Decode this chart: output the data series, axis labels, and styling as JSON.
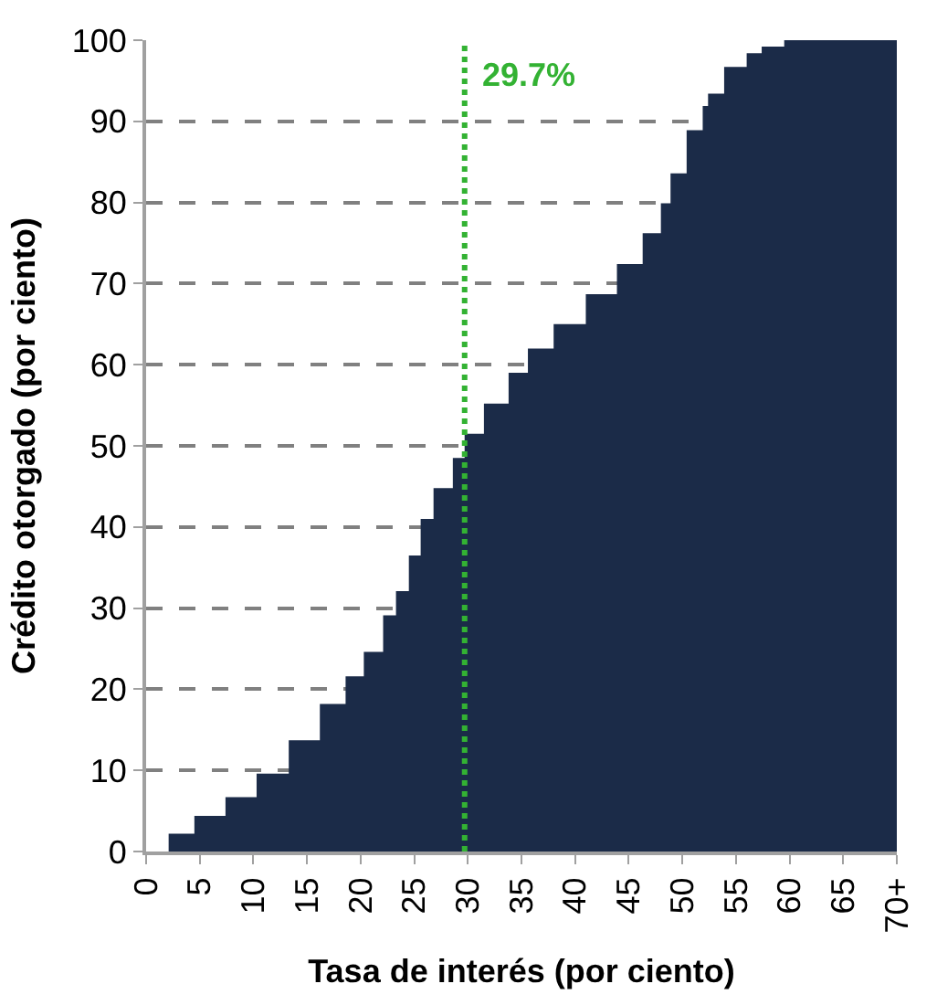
{
  "chart_data": {
    "type": "area",
    "xlabel": "Tasa de interés (por ciento)",
    "ylabel": "Crédito otorgado (por ciento)",
    "x": [
      0,
      2.1,
      4.5,
      7.4,
      10.3,
      13.3,
      16.2,
      18.6,
      20.3,
      22.1,
      23.3,
      24.5,
      25.6,
      26.8,
      28.6,
      29.7,
      31.5,
      33.8,
      35.6,
      38.0,
      41.0,
      43.9,
      46.3,
      48.0,
      48.9,
      50.4,
      51.9,
      52.4,
      53.9,
      56.0,
      57.4,
      59.5,
      70
    ],
    "series": [
      {
        "color": "#1b2b48",
        "values": [
          0,
          2.2,
          4.4,
          6.7,
          9.6,
          13.7,
          18.2,
          21.6,
          24.6,
          29.1,
          32.1,
          36.5,
          41.0,
          44.8,
          48.5,
          51.5,
          55.2,
          59.0,
          62.0,
          65.0,
          68.7,
          72.4,
          76.2,
          79.9,
          83.6,
          88.9,
          91.9,
          93.4,
          96.7,
          98.4,
          99.2,
          100,
          100
        ]
      }
    ],
    "xlim": [
      0,
      70
    ],
    "xticks": [
      0,
      5,
      10,
      15,
      20,
      25,
      30,
      35,
      40,
      45,
      50,
      55,
      60,
      65,
      {
        "value": 70,
        "label": "70+"
      }
    ],
    "ylim": [
      0,
      100
    ],
    "yticks": [
      0,
      10,
      20,
      30,
      40,
      50,
      60,
      70,
      80,
      90,
      100
    ],
    "grid": "y",
    "ref_lines": [
      {
        "axis": "x",
        "value": 29.7,
        "label": "29.7%",
        "color": "#33b233",
        "line_style": "dotted"
      }
    ]
  }
}
